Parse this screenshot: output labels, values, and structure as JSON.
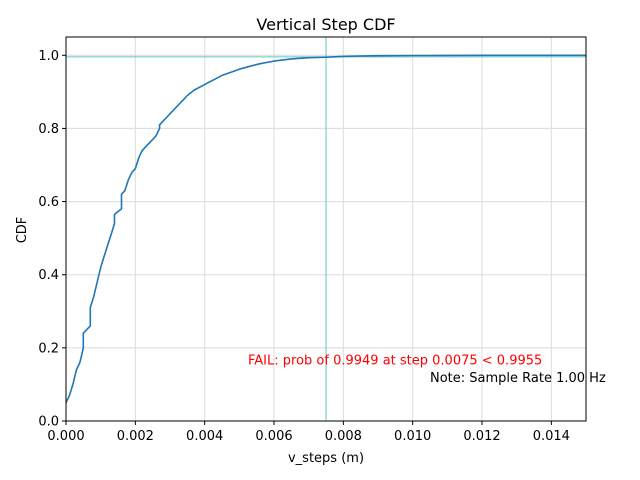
{
  "chart_data": {
    "type": "line",
    "title": "Vertical Step CDF",
    "xlabel": "v_steps (m)",
    "ylabel": "CDF",
    "xlim": [
      0,
      0.015
    ],
    "ylim": [
      0,
      1.05
    ],
    "x_ticks": [
      0,
      0.002,
      0.004,
      0.006,
      0.008,
      0.01,
      0.012,
      0.014
    ],
    "x_tick_labels": [
      "0.000",
      "0.002",
      "0.004",
      "0.006",
      "0.008",
      "0.010",
      "0.012",
      "0.014"
    ],
    "y_ticks": [
      0,
      0.2,
      0.4,
      0.6,
      0.8,
      1.0
    ],
    "y_tick_labels": [
      "0.0",
      "0.2",
      "0.4",
      "0.6",
      "0.8",
      "1.0"
    ],
    "grid": true,
    "line_color": "#1f77b4",
    "reference_color": "#5cc8c0",
    "series": [
      {
        "x": [
          0,
          0.0001,
          0.0002,
          0.0003,
          0.0004,
          0.0005,
          0.0005,
          0.0007,
          0.0007,
          0.0008,
          0.0009,
          0.001,
          0.0011,
          0.0012,
          0.0013,
          0.0014,
          0.0014,
          0.0016,
          0.0016,
          0.0017,
          0.0018,
          0.0019,
          0.002,
          0.0021,
          0.0022,
          0.0024,
          0.0025,
          0.0026,
          0.0027,
          0.0027,
          0.0029,
          0.003,
          0.0031,
          0.0032,
          0.0033,
          0.0034,
          0.0035,
          0.0037,
          0.0039,
          0.0041,
          0.0043,
          0.0045,
          0.0048,
          0.005,
          0.0053,
          0.0056,
          0.006,
          0.0065,
          0.007,
          0.0075,
          0.008,
          0.0085,
          0.009,
          0.01,
          0.011,
          0.012,
          0.013,
          0.014,
          0.015
        ],
        "y": [
          0.05,
          0.07,
          0.1,
          0.14,
          0.16,
          0.2,
          0.24,
          0.26,
          0.31,
          0.34,
          0.38,
          0.42,
          0.45,
          0.48,
          0.51,
          0.54,
          0.565,
          0.58,
          0.62,
          0.63,
          0.66,
          0.68,
          0.69,
          0.72,
          0.74,
          0.76,
          0.77,
          0.78,
          0.8,
          0.81,
          0.83,
          0.84,
          0.85,
          0.86,
          0.87,
          0.88,
          0.89,
          0.905,
          0.915,
          0.925,
          0.935,
          0.945,
          0.955,
          0.962,
          0.97,
          0.977,
          0.984,
          0.99,
          0.9935,
          0.9949,
          0.997,
          0.998,
          0.999,
          0.9995,
          0.9998,
          0.9999,
          1.0,
          1.0,
          1.0
        ]
      }
    ],
    "reference_lines": {
      "vertical_x": 0.0075,
      "horizontal_y": 0.9955
    },
    "annotations": [
      {
        "text": "FAIL: prob of 0.9949 at step 0.0075 < 0.9955",
        "color": "#ff0000",
        "x": 0.00525,
        "y": 0.155
      },
      {
        "text": "Note: Sample Rate 1.00 Hz",
        "color": "#000000",
        "x": 0.0105,
        "y": 0.107
      }
    ]
  }
}
